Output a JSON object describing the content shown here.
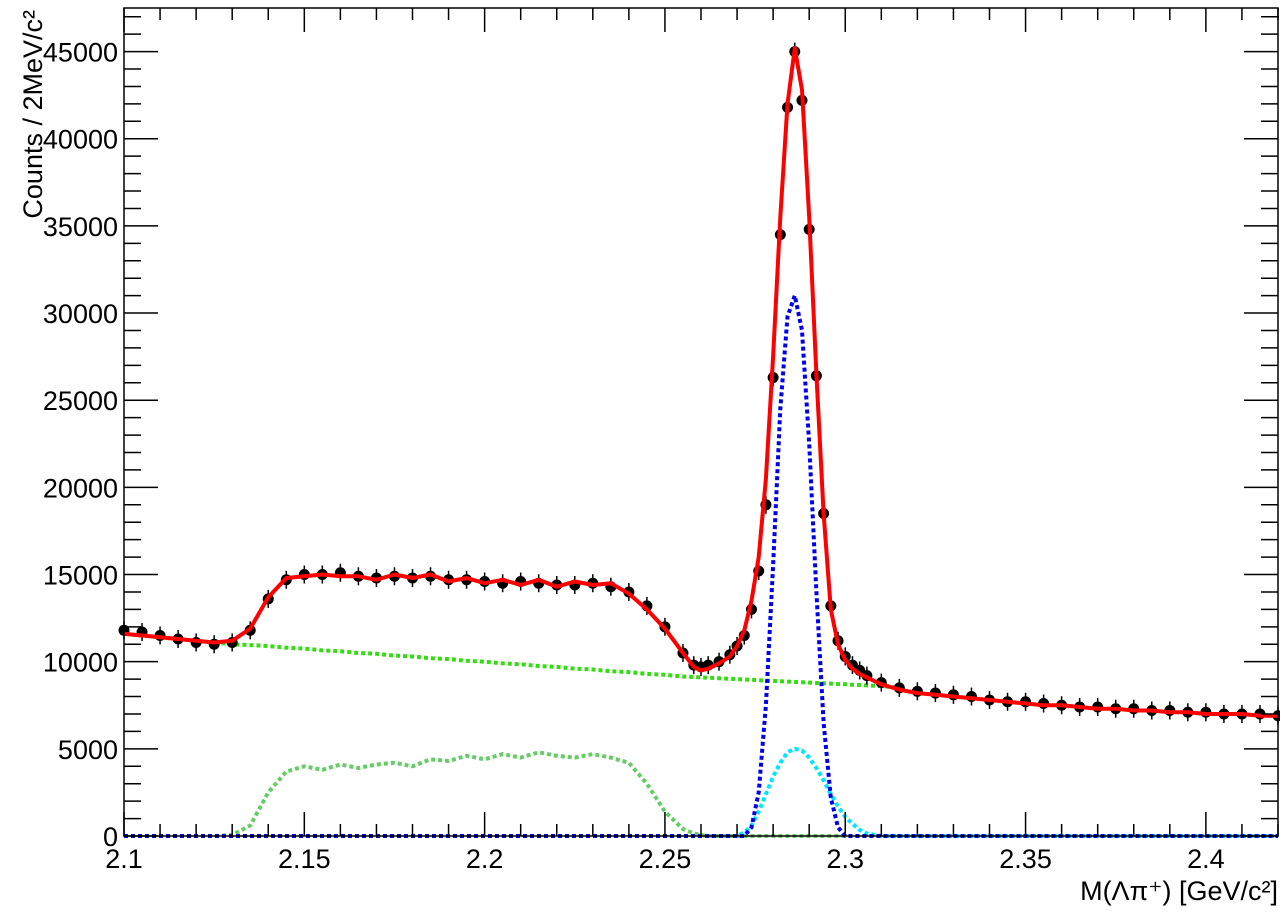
{
  "chart_data": {
    "type": "line",
    "xlabel": "M(Λπ⁺) [GeV/c²]",
    "ylabel": "Counts / 2MeV/c²",
    "xlim": [
      2.1,
      2.42
    ],
    "ylim": [
      0,
      47500
    ],
    "xticks": [
      "2.1",
      "2.15",
      "2.2",
      "2.25",
      "2.3",
      "2.35",
      "2.4"
    ],
    "yticks": [
      "0",
      "5000",
      "10000",
      "15000",
      "20000",
      "25000",
      "30000",
      "35000",
      "40000",
      "45000"
    ],
    "grid": false,
    "legend": "none",
    "x": [
      2.1,
      2.105,
      2.11,
      2.115,
      2.12,
      2.125,
      2.13,
      2.135,
      2.14,
      2.145,
      2.15,
      2.155,
      2.16,
      2.165,
      2.17,
      2.175,
      2.18,
      2.185,
      2.19,
      2.195,
      2.2,
      2.205,
      2.21,
      2.215,
      2.22,
      2.225,
      2.23,
      2.235,
      2.24,
      2.245,
      2.25,
      2.255,
      2.258,
      2.26,
      2.262,
      2.265,
      2.268,
      2.27,
      2.272,
      2.274,
      2.276,
      2.278,
      2.28,
      2.282,
      2.284,
      2.286,
      2.288,
      2.29,
      2.292,
      2.294,
      2.296,
      2.298,
      2.3,
      2.302,
      2.304,
      2.306,
      2.31,
      2.315,
      2.32,
      2.325,
      2.33,
      2.335,
      2.34,
      2.345,
      2.35,
      2.355,
      2.36,
      2.365,
      2.37,
      2.375,
      2.38,
      2.385,
      2.39,
      2.395,
      2.4,
      2.405,
      2.41,
      2.415,
      2.42
    ],
    "series": [
      {
        "role": "data",
        "style": "markers",
        "color": "#000000",
        "values": [
          11800,
          11700,
          11500,
          11300,
          11100,
          11000,
          11100,
          11800,
          13600,
          14700,
          15000,
          15000,
          15100,
          14900,
          14800,
          14900,
          14800,
          14900,
          14700,
          14700,
          14600,
          14500,
          14600,
          14500,
          14400,
          14400,
          14500,
          14300,
          14000,
          13200,
          12000,
          10500,
          9800,
          9700,
          9800,
          10000,
          10400,
          10900,
          11500,
          13000,
          15200,
          19000,
          26300,
          34500,
          41800,
          45000,
          42200,
          34800,
          26400,
          18500,
          13200,
          11200,
          10300,
          9800,
          9500,
          9200,
          8800,
          8500,
          8300,
          8200,
          8100,
          8000,
          7800,
          7700,
          7700,
          7600,
          7500,
          7400,
          7400,
          7300,
          7300,
          7200,
          7200,
          7100,
          7100,
          7000,
          7000,
          7000,
          6900
        ]
      },
      {
        "role": "total-fit",
        "style": "solid",
        "color": "#ff0000",
        "values": [
          11600,
          11500,
          11400,
          11300,
          11200,
          11100,
          11200,
          11900,
          13700,
          14800,
          14900,
          15000,
          14900,
          14900,
          14700,
          15000,
          14800,
          15000,
          14600,
          14800,
          14500,
          14700,
          14400,
          14700,
          14300,
          14600,
          14400,
          14500,
          13900,
          13000,
          11900,
          10500,
          9700,
          9500,
          9600,
          9900,
          10300,
          10900,
          11800,
          13500,
          16000,
          20500,
          27500,
          35500,
          42000,
          45200,
          42800,
          35500,
          26500,
          18500,
          13000,
          11000,
          10100,
          9600,
          9300,
          9100,
          8700,
          8400,
          8200,
          8100,
          8000,
          7900,
          7800,
          7700,
          7600,
          7500,
          7500,
          7400,
          7300,
          7300,
          7200,
          7200,
          7100,
          7100,
          7000,
          7000,
          7000,
          6900,
          6900
        ]
      },
      {
        "role": "linear-background",
        "style": "dotted",
        "color": "#33dd11",
        "values": [
          11600,
          11500,
          11400,
          11300,
          11200,
          11100,
          11000,
          10950,
          10900,
          10800,
          10750,
          10650,
          10600,
          10500,
          10450,
          10350,
          10300,
          10200,
          10150,
          10050,
          10000,
          9900,
          9850,
          9750,
          9700,
          9600,
          9550,
          9450,
          9400,
          9300,
          9250,
          9150,
          9120,
          9100,
          9080,
          9050,
          9020,
          9000,
          8980,
          8960,
          8940,
          8920,
          8900,
          8880,
          8860,
          8840,
          8820,
          8800,
          8780,
          8760,
          8740,
          8720,
          8700,
          8680,
          8660,
          8640,
          8600,
          8500,
          null,
          null,
          null,
          null,
          null,
          null,
          null,
          null,
          null,
          null,
          null,
          null,
          null,
          null,
          null,
          null,
          null,
          null,
          null,
          null,
          null
        ]
      },
      {
        "role": "plateau-background",
        "style": "dotted",
        "color": "#66cc66",
        "values": [
          0,
          0,
          0,
          0,
          0,
          0,
          50,
          600,
          2500,
          3700,
          4000,
          3800,
          4100,
          3900,
          4100,
          4200,
          4000,
          4400,
          4300,
          4600,
          4400,
          4700,
          4500,
          4800,
          4600,
          4500,
          4700,
          4500,
          4200,
          3000,
          1400,
          400,
          150,
          50,
          0,
          0,
          0,
          0,
          0,
          0,
          0,
          0,
          0,
          0,
          0,
          0,
          0,
          0,
          0,
          0,
          0,
          0,
          0,
          0,
          0,
          0,
          0,
          0,
          0,
          0,
          0,
          0,
          0,
          0,
          0,
          0,
          0,
          0,
          0,
          0,
          0,
          0,
          0,
          0,
          0,
          0,
          0,
          0,
          0
        ]
      },
      {
        "role": "narrow-signal",
        "style": "dotted",
        "color": "#0000ee",
        "values": [
          0,
          0,
          0,
          0,
          0,
          0,
          0,
          0,
          0,
          0,
          0,
          0,
          0,
          0,
          0,
          0,
          0,
          0,
          0,
          0,
          0,
          0,
          0,
          0,
          0,
          0,
          0,
          0,
          0,
          0,
          0,
          0,
          0,
          0,
          0,
          0,
          0,
          0,
          0,
          500,
          2500,
          7500,
          15500,
          24500,
          29800,
          31000,
          29000,
          22500,
          14000,
          6500,
          2200,
          500,
          0,
          0,
          0,
          0,
          0,
          0,
          0,
          0,
          0,
          0,
          0,
          0,
          0,
          0,
          0,
          0,
          0,
          0,
          0,
          0,
          0,
          0,
          0,
          0,
          0,
          0,
          0
        ]
      },
      {
        "role": "wide-signal",
        "style": "dotted",
        "color": "#00e5ff",
        "values": [
          0,
          0,
          0,
          0,
          0,
          0,
          0,
          0,
          0,
          0,
          0,
          0,
          0,
          0,
          0,
          0,
          0,
          0,
          0,
          0,
          0,
          0,
          0,
          0,
          0,
          0,
          0,
          0,
          0,
          0,
          0,
          0,
          0,
          0,
          0,
          0,
          0,
          0,
          200,
          600,
          1400,
          2400,
          3400,
          4200,
          4800,
          5000,
          4900,
          4500,
          3900,
          3200,
          2400,
          1700,
          1100,
          700,
          350,
          150,
          0,
          0,
          0,
          0,
          0,
          0,
          0,
          0,
          0,
          0,
          0,
          0,
          0,
          0,
          0,
          0,
          0,
          0,
          0,
          0,
          0,
          0,
          0
        ]
      }
    ]
  }
}
